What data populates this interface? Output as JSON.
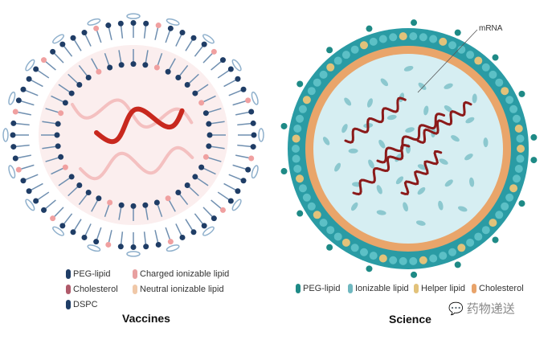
{
  "left_panel": {
    "caption": "Vaccines",
    "legend": [
      {
        "label": "PEG-lipid",
        "color": "#1f3d66"
      },
      {
        "label": "Charged ionizable lipid",
        "color": "#e8a0a0"
      },
      {
        "label": "Cholesterol",
        "color": "#b05a6a"
      },
      {
        "label": "Neutral ionizable lipid",
        "color": "#f0c8a8"
      },
      {
        "label": "DSPC",
        "color": "#1f3d66"
      }
    ],
    "colors": {
      "head": "#1f3d66",
      "rna": "#c8281e",
      "peg": "#8fb0cc"
    }
  },
  "right_panel": {
    "caption": "Science",
    "callout": "mRNA",
    "legend": [
      {
        "label": "PEG-lipid",
        "color": "#1e8a86"
      },
      {
        "label": "Ionizable lipid",
        "color": "#6fb8c0"
      },
      {
        "label": "Helper lipid",
        "color": "#e2c27a"
      },
      {
        "label": "Cholesterol",
        "color": "#e8a36a"
      }
    ],
    "colors": {
      "core": "#d6eef2",
      "rna": "#8b1a1a",
      "shell": "#2aa0a8"
    }
  },
  "watermark": "药物递送"
}
